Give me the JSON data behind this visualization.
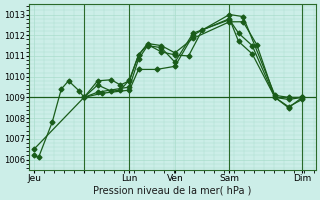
{
  "title": "",
  "xlabel": "Pression niveau de la mer( hPa )",
  "ylabel": "",
  "bg_color": "#cceee8",
  "grid_color": "#aaddcc",
  "line_color": "#1a5c1a",
  "ref_line_color": "#1a5c1a",
  "ylim": [
    1005.5,
    1013.5
  ],
  "yticks": [
    1006,
    1007,
    1008,
    1009,
    1010,
    1011,
    1012,
    1013
  ],
  "xtick_positions": [
    0,
    55,
    105,
    155,
    215,
    295
  ],
  "xtick_labels": [
    "Jeu",
    "",
    "Lun",
    "Ven",
    "Sam",
    "Dim"
  ],
  "vline_positions": [
    55,
    105,
    215,
    295
  ],
  "ref_line_y": 1009.0,
  "series1": {
    "x": [
      0,
      5,
      20,
      30,
      38,
      50,
      55,
      70,
      85,
      95,
      105,
      115,
      125,
      140,
      155,
      170,
      185,
      215,
      225,
      240,
      265,
      280,
      295
    ],
    "y": [
      1006.2,
      1006.1,
      1007.8,
      1009.4,
      1009.8,
      1009.3,
      1009.0,
      1009.8,
      1009.85,
      1009.6,
      1009.8,
      1011.05,
      1011.55,
      1011.2,
      1011.05,
      1011.0,
      1012.25,
      1012.8,
      1011.7,
      1011.1,
      1009.0,
      1008.55,
      1008.9
    ]
  },
  "series2": {
    "x": [
      0,
      55,
      70,
      85,
      95,
      105,
      115,
      125,
      140,
      155,
      175,
      215,
      230,
      245,
      265,
      280,
      295
    ],
    "y": [
      1006.5,
      1009.0,
      1009.6,
      1009.3,
      1009.35,
      1009.85,
      1011.05,
      1011.6,
      1011.5,
      1011.15,
      1011.85,
      1012.65,
      1012.65,
      1011.55,
      1009.0,
      1008.5,
      1009.0
    ]
  },
  "series3": {
    "x": [
      55,
      70,
      105,
      115,
      125,
      140,
      155,
      175,
      215,
      225,
      240,
      265,
      280,
      295
    ],
    "y": [
      1009.0,
      1009.25,
      1009.5,
      1010.85,
      1011.5,
      1011.4,
      1010.7,
      1012.1,
      1012.75,
      1012.1,
      1011.5,
      1009.0,
      1008.9,
      1009.0
    ]
  },
  "series4": {
    "x": [
      55,
      75,
      105,
      115,
      135,
      155,
      175,
      215,
      230,
      265,
      280,
      295
    ],
    "y": [
      1009.0,
      1009.2,
      1009.35,
      1010.35,
      1010.35,
      1010.5,
      1012.0,
      1013.0,
      1012.9,
      1009.1,
      1009.0,
      1009.0
    ]
  }
}
